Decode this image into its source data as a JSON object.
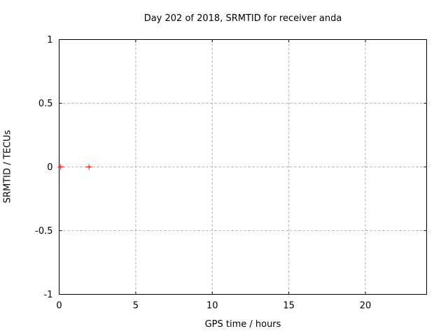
{
  "chart_data": {
    "type": "scatter",
    "title": "Day 202 of 2018, SRMTID for receiver anda",
    "xlabel": "GPS time / hours",
    "ylabel": "SRMTID / TECUs",
    "xlim": [
      0,
      24
    ],
    "ylim": [
      -1,
      1
    ],
    "xticks": [
      {
        "value": 0,
        "label": "0"
      },
      {
        "value": 5,
        "label": "5"
      },
      {
        "value": 10,
        "label": "10"
      },
      {
        "value": 15,
        "label": "15"
      },
      {
        "value": 20,
        "label": "20"
      }
    ],
    "yticks": [
      {
        "value": 1,
        "label": "1"
      },
      {
        "value": 0.5,
        "label": "0.5"
      },
      {
        "value": 0,
        "label": "0"
      },
      {
        "value": -0.5,
        "label": "-0.5"
      },
      {
        "value": -1,
        "label": "-1"
      }
    ],
    "grid": true,
    "legend_position": "none",
    "series": [
      {
        "name": "SRMTID",
        "marker": "plus",
        "color": "#ff0000",
        "points": [
          {
            "x": 0.1,
            "y": 0.0
          },
          {
            "x": 1.95,
            "y": 0.0
          }
        ]
      }
    ],
    "colors": {
      "background": "#ffffff",
      "frame": "#000000",
      "grid": "#a8a8a8",
      "text": "#000000",
      "marker": "#ff0000"
    }
  }
}
